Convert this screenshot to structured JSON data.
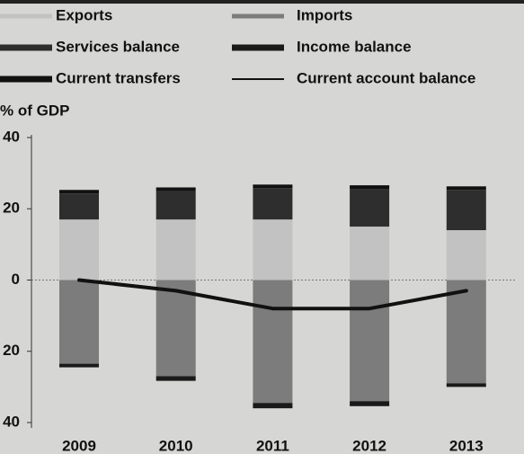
{
  "chart_data": {
    "type": "bar",
    "stacked": true,
    "y_label": "% of GDP",
    "categories": [
      "2009",
      "2010",
      "2011",
      "2012",
      "2013"
    ],
    "series": [
      {
        "name": "Exports",
        "color": "#c2c2c2",
        "values": [
          17,
          17,
          17,
          15,
          14
        ]
      },
      {
        "name": "Imports",
        "color": "#7c7c7c",
        "values": [
          -23.5,
          -27,
          -34.5,
          -34,
          -29
        ]
      },
      {
        "name": "Services balance",
        "color": "#2e2e2e",
        "values": [
          7.3,
          8,
          8.8,
          10.6,
          11.3
        ]
      },
      {
        "name": "Income balance",
        "color": "#1a1a1a",
        "values": [
          -1,
          -1.3,
          -1.5,
          -1.4,
          -1
        ]
      },
      {
        "name": "Current transfers",
        "color": "#111111",
        "values": [
          1,
          1,
          1,
          1,
          1
        ]
      },
      {
        "name": "Current account balance",
        "color": "#111111",
        "type": "line",
        "values": [
          0,
          -3,
          -8,
          -8,
          -3
        ]
      }
    ],
    "ylim": [
      -40,
      40
    ],
    "yticks": [
      {
        "value": -40,
        "label": "40"
      },
      {
        "value": -20,
        "label": "20"
      },
      0,
      20,
      40
    ],
    "grid": false
  }
}
